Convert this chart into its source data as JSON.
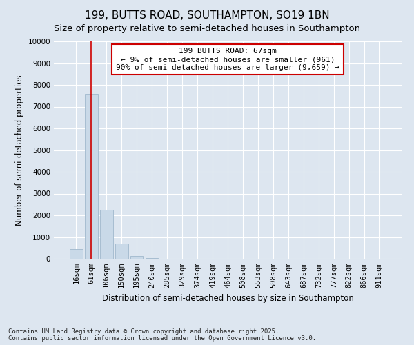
{
  "title": "199, BUTTS ROAD, SOUTHAMPTON, SO19 1BN",
  "subtitle": "Size of property relative to semi-detached houses in Southampton",
  "xlabel": "Distribution of semi-detached houses by size in Southampton",
  "ylabel": "Number of semi-detached properties",
  "categories": [
    "16sqm",
    "61sqm",
    "106sqm",
    "150sqm",
    "195sqm",
    "240sqm",
    "285sqm",
    "329sqm",
    "374sqm",
    "419sqm",
    "464sqm",
    "508sqm",
    "553sqm",
    "598sqm",
    "643sqm",
    "687sqm",
    "732sqm",
    "777sqm",
    "822sqm",
    "866sqm",
    "911sqm"
  ],
  "values": [
    430,
    7600,
    2250,
    700,
    130,
    40,
    10,
    5,
    3,
    2,
    1,
    1,
    1,
    0,
    0,
    0,
    0,
    0,
    0,
    0,
    0
  ],
  "bar_color": "#c9d9e8",
  "bar_edge_color": "#a0b8cc",
  "vline_x_index": 1,
  "vline_color": "#cc0000",
  "annotation_line1": "199 BUTTS ROAD: 67sqm",
  "annotation_line2": "← 9% of semi-detached houses are smaller (961)",
  "annotation_line3": "90% of semi-detached houses are larger (9,659) →",
  "annotation_box_color": "#ffffff",
  "annotation_box_edge_color": "#cc0000",
  "footnote": "Contains HM Land Registry data © Crown copyright and database right 2025.\nContains public sector information licensed under the Open Government Licence v3.0.",
  "bg_color": "#dde6f0",
  "plot_bg_color": "#dde6f0",
  "ylim": [
    0,
    10000
  ],
  "yticks": [
    0,
    1000,
    2000,
    3000,
    4000,
    5000,
    6000,
    7000,
    8000,
    9000,
    10000
  ],
  "title_fontsize": 11,
  "subtitle_fontsize": 9.5,
  "axis_label_fontsize": 8.5,
  "tick_fontsize": 7.5,
  "annotation_fontsize": 8,
  "footnote_fontsize": 6.5
}
